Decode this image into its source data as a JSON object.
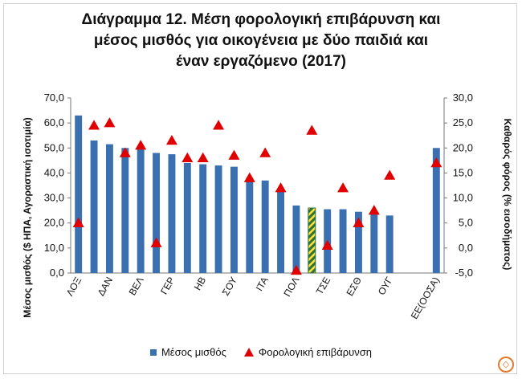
{
  "colors": {
    "bar": "#3a6fb0",
    "bar_highlight_a": "#2f6f3a",
    "bar_highlight_b": "#f2e33a",
    "marker": "#e00000",
    "logo": "#e07a2a"
  },
  "logo_icon": "triangle-diamond-logo-icon",
  "chart_data": {
    "type": "bar",
    "title": [
      "Διάγραμμα 12. Μέση φορολογική επιβάρυνση και",
      "μέσος μισθός για οικογένεια με δύο παιδιά και",
      "έναν εργαζόμενο (2017)"
    ],
    "ylabel": "Μέσος μισθός ($ ΗΠΑ, Αγοραστική ισοτιμία)",
    "ylabel_display": "Μέσος μισθός ($ ΗΠΑ, Αγοραστική ισοτιμία)",
    "y2label": "Καθαρός φόρος (% εισοδήματος)",
    "ylim": [
      0,
      70
    ],
    "y_ticks": [
      "0,0",
      "10,0",
      "20,0",
      "30,0",
      "40,0",
      "50,0",
      "60,0",
      "70,0"
    ],
    "y_tick_values": [
      0,
      10,
      20,
      30,
      40,
      50,
      60,
      70
    ],
    "y2lim": [
      -5,
      30
    ],
    "y2_ticks": [
      "-5,0",
      "0,0",
      "5,0",
      "10,0",
      "15,0",
      "20,0",
      "25,0",
      "30,0"
    ],
    "y2_tick_values": [
      -5,
      0,
      5,
      10,
      15,
      20,
      25,
      30
    ],
    "category_labels": [
      "ΛΟΞ",
      "ΔΑΝ",
      "ΒΕΛ",
      "ΓΕΡ",
      "ΗΒ",
      "ΣΟΥ",
      "ΙΤΑ",
      "ΠΟΛ",
      "ΤΣΕ",
      "ΕΣΘ",
      "ΟΥΓ",
      "ΕΕ(ΟΟΣΑ)"
    ],
    "category_label_positions": [
      0,
      2,
      4,
      6,
      8,
      10,
      12,
      14,
      16,
      18,
      20,
      23
    ],
    "highlight_index": 15,
    "series": [
      {
        "name": "Μέσος μισθός",
        "axis": "left",
        "kind": "bar",
        "values": [
          63,
          53,
          51.5,
          50,
          50,
          48,
          47.5,
          44,
          43.5,
          43,
          42.5,
          38,
          37,
          33.5,
          27,
          26,
          25.5,
          25.5,
          24.5,
          23.5,
          23,
          null,
          null,
          50
        ]
      },
      {
        "name": "Φορολογική επιβάρυνση",
        "axis": "right",
        "kind": "marker",
        "values": [
          5,
          24.5,
          25,
          19,
          20.5,
          1,
          21.5,
          18,
          18,
          24.5,
          18.5,
          14,
          19,
          12,
          -4.5,
          23.5,
          0.5,
          12,
          5,
          7.5,
          14.5,
          null,
          null,
          17
        ]
      }
    ],
    "legend": [
      "Μέσος μισθός",
      "Φορολογική επιβάρυνση"
    ],
    "legend_position": "bottom",
    "grid": false
  }
}
